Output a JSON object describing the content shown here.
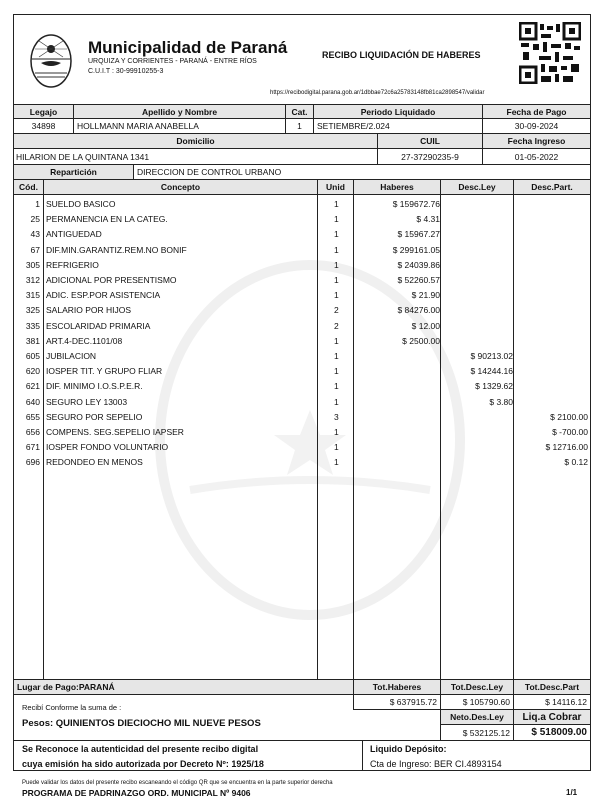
{
  "header": {
    "org": "Municipalidad de Paraná",
    "address": "URQUIZA Y CORRIENTES - PARANÁ - ENTRE RÍOS",
    "cuit": "C.U.I.T : 30-99910255-3",
    "title": "RECIBO LIQUIDACIÓN DE HABERES",
    "url": "https://recibodigital.parana.gob.ar/1dbbae72c6a25783148fb81ca2898547/validar"
  },
  "employee": {
    "legajo_label": "Legajo",
    "legajo": "34898",
    "name_label": "Apellido y Nombre",
    "name": "HOLLMANN MARIA ANABELLA",
    "cat_label": "Cat.",
    "cat": "1",
    "periodo_label": "Periodo Liquidado",
    "periodo": "SETIEMBRE/2.024",
    "fecha_pago_label": "Fecha de Pago",
    "fecha_pago": "30-09-2024",
    "domicilio_label": "Domicilio",
    "domicilio": "HILARION DE LA QUINTANA 1341",
    "cuil_label": "CUIL",
    "cuil": "27-37290235-9",
    "ingreso_label": "Fecha Ingreso",
    "ingreso": "01-05-2022",
    "reparticion_label": "Repartición",
    "reparticion": "DIRECCION DE CONTROL URBANO"
  },
  "table": {
    "headers": [
      "Cód.",
      "Concepto",
      "Unid",
      "Haberes",
      "Desc.Ley",
      "Desc.Part."
    ],
    "rows": [
      {
        "cod": "1",
        "concepto": "SUELDO BASICO",
        "unid": "1",
        "haberes": "$ 159672.76",
        "ley": "",
        "part": ""
      },
      {
        "cod": "25",
        "concepto": "PERMANENCIA EN LA CATEG.",
        "unid": "1",
        "haberes": "$ 4.31",
        "ley": "",
        "part": ""
      },
      {
        "cod": "43",
        "concepto": "ANTIGUEDAD",
        "unid": "1",
        "haberes": "$ 15967.27",
        "ley": "",
        "part": ""
      },
      {
        "cod": "67",
        "concepto": "DIF.MIN.GARANTIZ.REM.NO BONIF",
        "unid": "1",
        "haberes": "$ 299161.05",
        "ley": "",
        "part": ""
      },
      {
        "cod": "305",
        "concepto": "REFRIGERIO",
        "unid": "1",
        "haberes": "$ 24039.86",
        "ley": "",
        "part": ""
      },
      {
        "cod": "312",
        "concepto": "ADICIONAL POR PRESENTISMO",
        "unid": "1",
        "haberes": "$ 52260.57",
        "ley": "",
        "part": ""
      },
      {
        "cod": "315",
        "concepto": "ADIC. ESP.POR ASISTENCIA",
        "unid": "1",
        "haberes": "$ 21.90",
        "ley": "",
        "part": ""
      },
      {
        "cod": "325",
        "concepto": "SALARIO POR HIJOS",
        "unid": "2",
        "haberes": "$ 84276.00",
        "ley": "",
        "part": ""
      },
      {
        "cod": "335",
        "concepto": "ESCOLARIDAD PRIMARIA",
        "unid": "2",
        "haberes": "$ 12.00",
        "ley": "",
        "part": ""
      },
      {
        "cod": "381",
        "concepto": "ART.4-DEC.1101/08",
        "unid": "1",
        "haberes": "$ 2500.00",
        "ley": "",
        "part": ""
      },
      {
        "cod": "605",
        "concepto": "JUBILACION",
        "unid": "1",
        "haberes": "",
        "ley": "$ 90213.02",
        "part": ""
      },
      {
        "cod": "620",
        "concepto": "IOSPER TIT. Y GRUPO FLIAR",
        "unid": "1",
        "haberes": "",
        "ley": "$ 14244.16",
        "part": ""
      },
      {
        "cod": "621",
        "concepto": "DIF. MINIMO I.O.S.P.E.R.",
        "unid": "1",
        "haberes": "",
        "ley": "$ 1329.62",
        "part": ""
      },
      {
        "cod": "640",
        "concepto": "SEGURO LEY 13003",
        "unid": "1",
        "haberes": "",
        "ley": "$ 3.80",
        "part": ""
      },
      {
        "cod": "655",
        "concepto": "SEGURO POR SEPELIO",
        "unid": "3",
        "haberes": "",
        "ley": "",
        "part": "$ 2100.00"
      },
      {
        "cod": "656",
        "concepto": "COMPENS. SEG.SEPELIO IAPSER",
        "unid": "1",
        "haberes": "",
        "ley": "",
        "part": "$ -700.00"
      },
      {
        "cod": "671",
        "concepto": "IOSPER FONDO VOLUNTARIO",
        "unid": "1",
        "haberes": "",
        "ley": "",
        "part": "$ 12716.00"
      },
      {
        "cod": "696",
        "concepto": "REDONDEO EN MENOS",
        "unid": "1",
        "haberes": "",
        "ley": "",
        "part": "$ 0.12"
      }
    ]
  },
  "totals": {
    "lugar": "Lugar de Pago:PARANÁ",
    "tot_haberes_label": "Tot.Haberes",
    "tot_haberes": "$ 637915.72",
    "tot_ley_label": "Tot.Desc.Ley",
    "tot_ley": "$ 105790.60",
    "tot_part_label": "Tot.Desc.Part",
    "tot_part": "$ 14116.12",
    "neto_label": "Neto.Des.Ley",
    "neto": "$ 532125.12",
    "liq_label": "Liq.a Cobrar",
    "liq": "$ 518009.00",
    "recibi": "Recibí Conforme la suma de :",
    "pesos": "Pesos: QUINIENTOS DIECIOCHO MIL NUEVE  PESOS"
  },
  "auth": {
    "line1": "Se Reconoce la autenticidad del presente recibo digital",
    "line2": "cuya emisión ha sido autorizada por Decreto Nº: 1925/18",
    "deposito_label": "Liquido Depósito:",
    "cuenta": "Cta de Ingreso: BER CI.4893154"
  },
  "footer": {
    "note": "Puede validar los datos del presente recibo escaneando el código QR que se encuentra en la parte superior derecha",
    "programa": "PROGRAMA DE PADRINAZGO ORD. MUNICIPAL Nº 9406",
    "page": "1/1"
  }
}
